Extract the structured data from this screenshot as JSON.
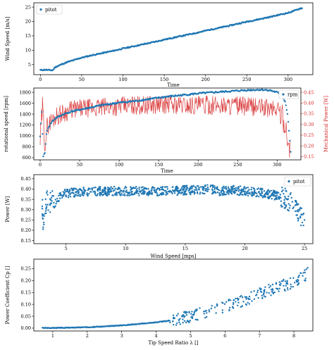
{
  "chart_data": [
    {
      "type": "scatter",
      "xlabel": "Time",
      "ylabel": "Wind Speed [m/s]",
      "xlim": [
        -8,
        330
      ],
      "ylim": [
        1.5,
        26.5
      ],
      "xticks": [
        "0",
        "50",
        "100",
        "150",
        "200",
        "250",
        "300"
      ],
      "yticks": [
        "5",
        "10",
        "15",
        "20",
        "25"
      ],
      "legend": "top-left",
      "series": [
        {
          "name": "pitot",
          "color": "#1f77b4",
          "x": [
            0,
            5,
            10,
            15,
            17,
            20,
            25,
            30,
            35,
            40,
            45,
            50,
            60,
            70,
            80,
            90,
            100,
            110,
            120,
            130,
            140,
            150,
            160,
            170,
            180,
            190,
            200,
            210,
            220,
            230,
            240,
            250,
            260,
            270,
            280,
            290,
            300,
            305,
            310,
            315
          ],
          "y": [
            3.1,
            3.2,
            3.1,
            3.0,
            3.9,
            4.4,
            5.0,
            5.6,
            6.1,
            6.5,
            7.0,
            7.4,
            8.1,
            8.7,
            9.3,
            9.9,
            10.6,
            11.2,
            11.8,
            12.4,
            13.0,
            13.7,
            14.3,
            14.9,
            15.5,
            16.1,
            16.8,
            17.4,
            18.0,
            18.6,
            19.3,
            19.9,
            20.5,
            21.1,
            21.7,
            22.4,
            23.0,
            23.5,
            24.0,
            24.6
          ]
        }
      ]
    },
    {
      "type": "line",
      "xlabel": "Time",
      "ylabel": "rotational speed [rpm]",
      "ylabel_right": "Mechanical Power [W]",
      "xlim": [
        -8,
        330
      ],
      "ylim": [
        560,
        1880
      ],
      "ylim_right": [
        0.135,
        0.47
      ],
      "xticks": [
        "0",
        "50",
        "100",
        "150",
        "200",
        "250",
        "300"
      ],
      "yticks": [
        "600",
        "800",
        "1000",
        "1200",
        "1400",
        "1600",
        "1800"
      ],
      "yticks_right": [
        "0.15",
        "0.20",
        "0.25",
        "0.30",
        "0.35",
        "0.40",
        "0.45"
      ],
      "legend": "top-right",
      "series": [
        {
          "name": "rpm",
          "color": "#1f77b4",
          "x": [
            0,
            2,
            4,
            6,
            8,
            10,
            15,
            20,
            30,
            40,
            60,
            80,
            100,
            120,
            140,
            160,
            180,
            200,
            220,
            240,
            260,
            280,
            290,
            300,
            305,
            310,
            313,
            315,
            317
          ],
          "y": [
            980,
            1450,
            620,
            700,
            1020,
            1150,
            1260,
            1330,
            1400,
            1450,
            1510,
            1570,
            1610,
            1640,
            1680,
            1720,
            1750,
            1780,
            1800,
            1820,
            1840,
            1850,
            1840,
            1800,
            1750,
            1640,
            1400,
            1100,
            700
          ]
        },
        {
          "name": "",
          "color": "#d62728",
          "x": [
            0,
            3,
            6,
            10,
            20,
            40,
            60,
            80,
            100,
            120,
            140,
            160,
            180,
            200,
            220,
            240,
            260,
            280,
            300,
            305,
            310,
            313,
            315,
            317
          ],
          "y": [
            0.22,
            0.38,
            0.22,
            0.3,
            0.34,
            0.37,
            0.375,
            0.38,
            0.385,
            0.39,
            0.39,
            0.395,
            0.39,
            0.39,
            0.39,
            0.39,
            0.385,
            0.38,
            0.37,
            0.35,
            0.3,
            0.24,
            0.17,
            0.28
          ]
        }
      ]
    },
    {
      "type": "scatter",
      "xlabel": "Wind Speed [mps]",
      "ylabel": "Power [W]",
      "xlim": [
        2.3,
        25.7
      ],
      "ylim": [
        0.135,
        0.47
      ],
      "xticks": [
        "5",
        "10",
        "15",
        "20",
        "25"
      ],
      "yticks": [
        "0.15",
        "0.20",
        "0.25",
        "0.30",
        "0.35",
        "0.40",
        "0.45"
      ],
      "legend": "top-right",
      "series": [
        {
          "name": "pitot",
          "color": "#1f77b4",
          "x": [
            3.0,
            3.1,
            3.2,
            3.4,
            3.6,
            3.8,
            4.0,
            4.5,
            5.0,
            6.0,
            7.0,
            8.0,
            9.0,
            10.0,
            11.0,
            12.0,
            13.0,
            14.0,
            15.0,
            16.0,
            17.0,
            18.0,
            19.0,
            20.0,
            21.0,
            22.0,
            22.5,
            23.0,
            23.5,
            24.0,
            24.5,
            24.8,
            25.0
          ],
          "y": [
            0.34,
            0.22,
            0.3,
            0.36,
            0.33,
            0.35,
            0.33,
            0.37,
            0.38,
            0.385,
            0.39,
            0.39,
            0.39,
            0.39,
            0.39,
            0.39,
            0.39,
            0.39,
            0.395,
            0.395,
            0.4,
            0.39,
            0.395,
            0.39,
            0.385,
            0.375,
            0.37,
            0.365,
            0.35,
            0.33,
            0.29,
            0.25,
            0.23
          ]
        }
      ]
    },
    {
      "type": "scatter",
      "xlabel": "Tip Speed Ratio λ []",
      "ylabel": "Power Coefficient Cp []",
      "xlim": [
        0.45,
        8.55
      ],
      "ylim": [
        -0.012,
        0.29
      ],
      "xticks": [
        "1",
        "2",
        "3",
        "4",
        "5",
        "6",
        "7",
        "8"
      ],
      "yticks": [
        "0.00",
        "0.05",
        "0.10",
        "0.15",
        "0.20",
        "0.25"
      ],
      "series": [
        {
          "name": "",
          "color": "#1f77b4",
          "x": [
            0.7,
            1.0,
            1.5,
            2.0,
            2.5,
            3.0,
            3.3,
            3.6,
            3.9,
            4.2,
            4.4,
            4.6,
            4.8,
            5.0,
            5.2,
            5.5,
            5.8,
            6.0,
            6.2,
            6.5,
            6.8,
            7.0,
            7.2,
            7.4,
            7.6,
            7.8,
            8.0,
            8.2,
            8.4
          ],
          "y": [
            0.001,
            0.001,
            0.002,
            0.004,
            0.007,
            0.012,
            0.015,
            0.019,
            0.023,
            0.028,
            0.032,
            0.037,
            0.043,
            0.05,
            0.058,
            0.068,
            0.08,
            0.09,
            0.1,
            0.115,
            0.13,
            0.145,
            0.155,
            0.165,
            0.175,
            0.185,
            0.195,
            0.21,
            0.23
          ]
        }
      ]
    }
  ]
}
